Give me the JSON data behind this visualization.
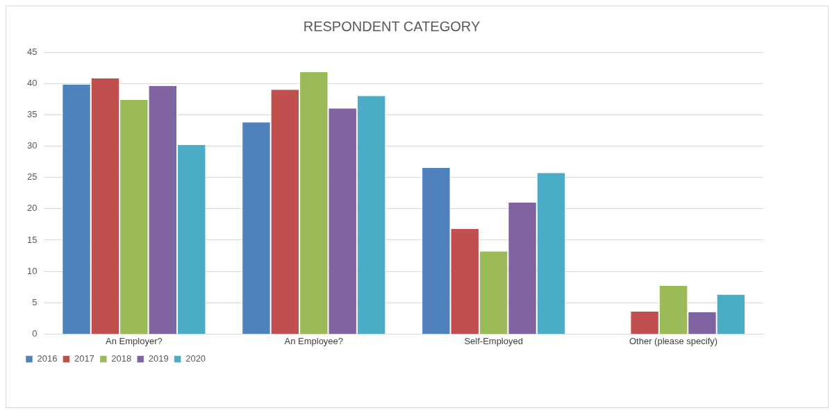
{
  "chart_data": {
    "type": "bar",
    "title": "RESPONDENT CATEGORY",
    "categories": [
      "An Employer?",
      "An Employee?",
      "Self-Employed",
      "Other (please specify)"
    ],
    "series": [
      {
        "name": "2016",
        "color": "#4f81bd",
        "values": [
          39.8,
          33.8,
          26.5,
          0
        ]
      },
      {
        "name": "2017",
        "color": "#c0504d",
        "values": [
          40.8,
          39.0,
          16.8,
          3.6
        ]
      },
      {
        "name": "2018",
        "color": "#9bbb59",
        "values": [
          37.4,
          41.8,
          13.2,
          7.7
        ]
      },
      {
        "name": "2019",
        "color": "#8064a2",
        "values": [
          39.6,
          36.0,
          21.0,
          3.5
        ]
      },
      {
        "name": "2020",
        "color": "#4bacc6",
        "values": [
          30.2,
          38.0,
          25.7,
          6.3
        ]
      }
    ],
    "ylim": [
      0,
      45
    ],
    "yticks": [
      0,
      5,
      10,
      15,
      20,
      25,
      30,
      35,
      40,
      45
    ],
    "grid": "y",
    "legend": "bottom"
  }
}
